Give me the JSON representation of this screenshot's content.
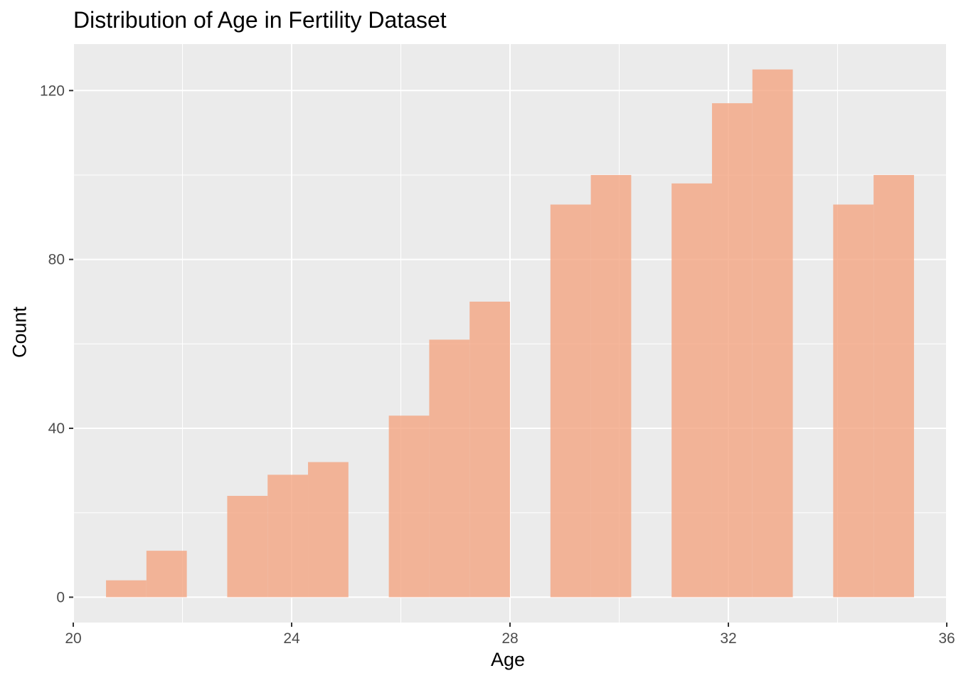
{
  "chart_data": {
    "type": "bar",
    "title": "Distribution of Age in Fertility Dataset",
    "xlabel": "Age",
    "ylabel": "Count",
    "xlim": [
      20,
      36
    ],
    "ylim": [
      -6,
      131
    ],
    "x_ticks": [
      20,
      24,
      28,
      32,
      36
    ],
    "y_ticks": [
      0,
      40,
      80,
      120
    ],
    "grid": true,
    "legend": "none",
    "colors": {
      "bar": "#f4a582",
      "panel": "#ebebeb",
      "grid": "#ffffff"
    },
    "bin_width": 0.74,
    "bins": [
      {
        "x_start": 20.6,
        "x_end": 21.34,
        "count": 4
      },
      {
        "x_start": 21.34,
        "x_end": 22.08,
        "count": 11
      },
      {
        "x_start": 22.08,
        "x_end": 22.82,
        "count": 0
      },
      {
        "x_start": 22.82,
        "x_end": 23.56,
        "count": 24
      },
      {
        "x_start": 23.56,
        "x_end": 24.3,
        "count": 29
      },
      {
        "x_start": 24.3,
        "x_end": 25.04,
        "count": 32
      },
      {
        "x_start": 25.04,
        "x_end": 25.78,
        "count": 0
      },
      {
        "x_start": 25.78,
        "x_end": 26.52,
        "count": 43
      },
      {
        "x_start": 26.52,
        "x_end": 27.26,
        "count": 61
      },
      {
        "x_start": 27.26,
        "x_end": 28.0,
        "count": 70
      },
      {
        "x_start": 28.0,
        "x_end": 28.74,
        "count": 0
      },
      {
        "x_start": 28.74,
        "x_end": 29.48,
        "count": 93
      },
      {
        "x_start": 29.48,
        "x_end": 30.22,
        "count": 100
      },
      {
        "x_start": 30.22,
        "x_end": 30.96,
        "count": 0
      },
      {
        "x_start": 30.96,
        "x_end": 31.7,
        "count": 98
      },
      {
        "x_start": 31.7,
        "x_end": 32.44,
        "count": 117
      },
      {
        "x_start": 32.44,
        "x_end": 33.18,
        "count": 125
      },
      {
        "x_start": 33.18,
        "x_end": 33.92,
        "count": 0
      },
      {
        "x_start": 33.92,
        "x_end": 34.66,
        "count": 93
      },
      {
        "x_start": 34.66,
        "x_end": 35.4,
        "count": 100
      }
    ]
  }
}
